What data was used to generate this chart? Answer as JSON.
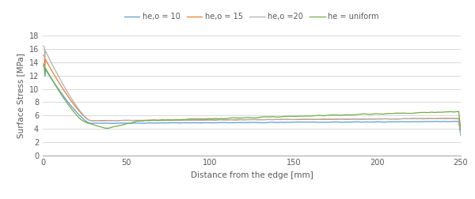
{
  "title": "",
  "xlabel": "Distance from the edge [mm]",
  "ylabel": "Surface Stress [MPa]",
  "xlim": [
    0,
    250
  ],
  "ylim": [
    0,
    18
  ],
  "yticks": [
    0,
    2,
    4,
    6,
    8,
    10,
    12,
    14,
    16,
    18
  ],
  "xticks": [
    0,
    50,
    100,
    150,
    200,
    250
  ],
  "legend_labels": [
    "he,o = 10",
    "he,o = 15",
    "he,o =20",
    "he = uniform"
  ],
  "line_colors": [
    "#5b9bd5",
    "#ed7d31",
    "#b0b0b0",
    "#70ad47"
  ],
  "background_color": "#ffffff",
  "grid_color": "#d9d9d9",
  "font_color": "#595959",
  "axis_color": "#aaaaaa"
}
